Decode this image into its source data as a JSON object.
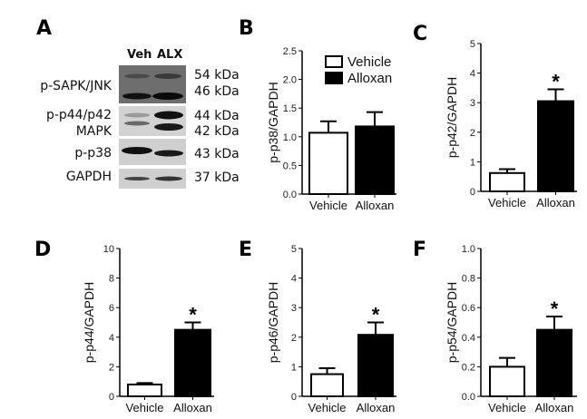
{
  "panel_labels": [
    "A",
    "B",
    "C",
    "D",
    "E",
    "F"
  ],
  "blot": {
    "lanes": [
      "Veh",
      "ALX"
    ],
    "rows": [
      {
        "label": [
          "p-SAPK/JNK"
        ],
        "kda": [
          "54 kDa",
          "46 kDa"
        ]
      },
      {
        "label": [
          "p-p44/p42",
          "MAPK"
        ],
        "kda": [
          "44 kDa",
          "42 kDa"
        ]
      },
      {
        "label": [
          "p-p38"
        ],
        "kda": [
          "43 kDa"
        ]
      },
      {
        "label": [
          "GAPDH"
        ],
        "kda": [
          "37 kDa"
        ]
      }
    ]
  },
  "legend": [
    "Vehicle",
    "Alloxan"
  ],
  "colors": {
    "vehicle": "#ffffff",
    "alloxan": "#000000"
  },
  "chart_data": [
    {
      "panel": "B",
      "type": "bar",
      "categories": [
        "Vehicle",
        "Alloxan"
      ],
      "values": [
        1.07,
        1.18
      ],
      "errors": [
        0.2,
        0.25
      ],
      "ylabel": "p-p38/GAPDH",
      "ylim": [
        0,
        2.5
      ],
      "yticks": [
        "0.0",
        "0.5",
        "1.0",
        "1.5",
        "2.0",
        "2.5"
      ],
      "significant": [
        false,
        false
      ]
    },
    {
      "panel": "C",
      "type": "bar",
      "categories": [
        "Vehicle",
        "Alloxan"
      ],
      "values": [
        0.62,
        3.05
      ],
      "errors": [
        0.13,
        0.4
      ],
      "ylabel": "p-p42/GAPDH",
      "ylim": [
        0,
        5
      ],
      "yticks": [
        "0",
        "1",
        "2",
        "3",
        "4",
        "5"
      ],
      "significant": [
        false,
        true
      ]
    },
    {
      "panel": "D",
      "type": "bar",
      "categories": [
        "Vehicle",
        "Alloxan"
      ],
      "values": [
        0.8,
        4.5
      ],
      "errors": [
        0.1,
        0.5
      ],
      "ylabel": "p-p44/GAPDH",
      "ylim": [
        0,
        10
      ],
      "yticks": [
        "0",
        "2",
        "4",
        "6",
        "8",
        "10"
      ],
      "significant": [
        false,
        true
      ]
    },
    {
      "panel": "E",
      "type": "bar",
      "categories": [
        "Vehicle",
        "Alloxan"
      ],
      "values": [
        0.75,
        2.08
      ],
      "errors": [
        0.2,
        0.42
      ],
      "ylabel": "p-p46/GAPDH",
      "ylim": [
        0,
        5
      ],
      "yticks": [
        "0",
        "1",
        "2",
        "3",
        "4",
        "5"
      ],
      "significant": [
        false,
        true
      ]
    },
    {
      "panel": "F",
      "type": "bar",
      "categories": [
        "Vehicle",
        "Alloxan"
      ],
      "values": [
        0.2,
        0.45
      ],
      "errors": [
        0.06,
        0.09
      ],
      "ylabel": "p-p54/GAPDH",
      "ylim": [
        0,
        1.0
      ],
      "yticks": [
        "0.0",
        "0.2",
        "0.4",
        "0.6",
        "0.8",
        "1.0"
      ],
      "significant": [
        false,
        true
      ]
    }
  ],
  "significance_marker": "*"
}
